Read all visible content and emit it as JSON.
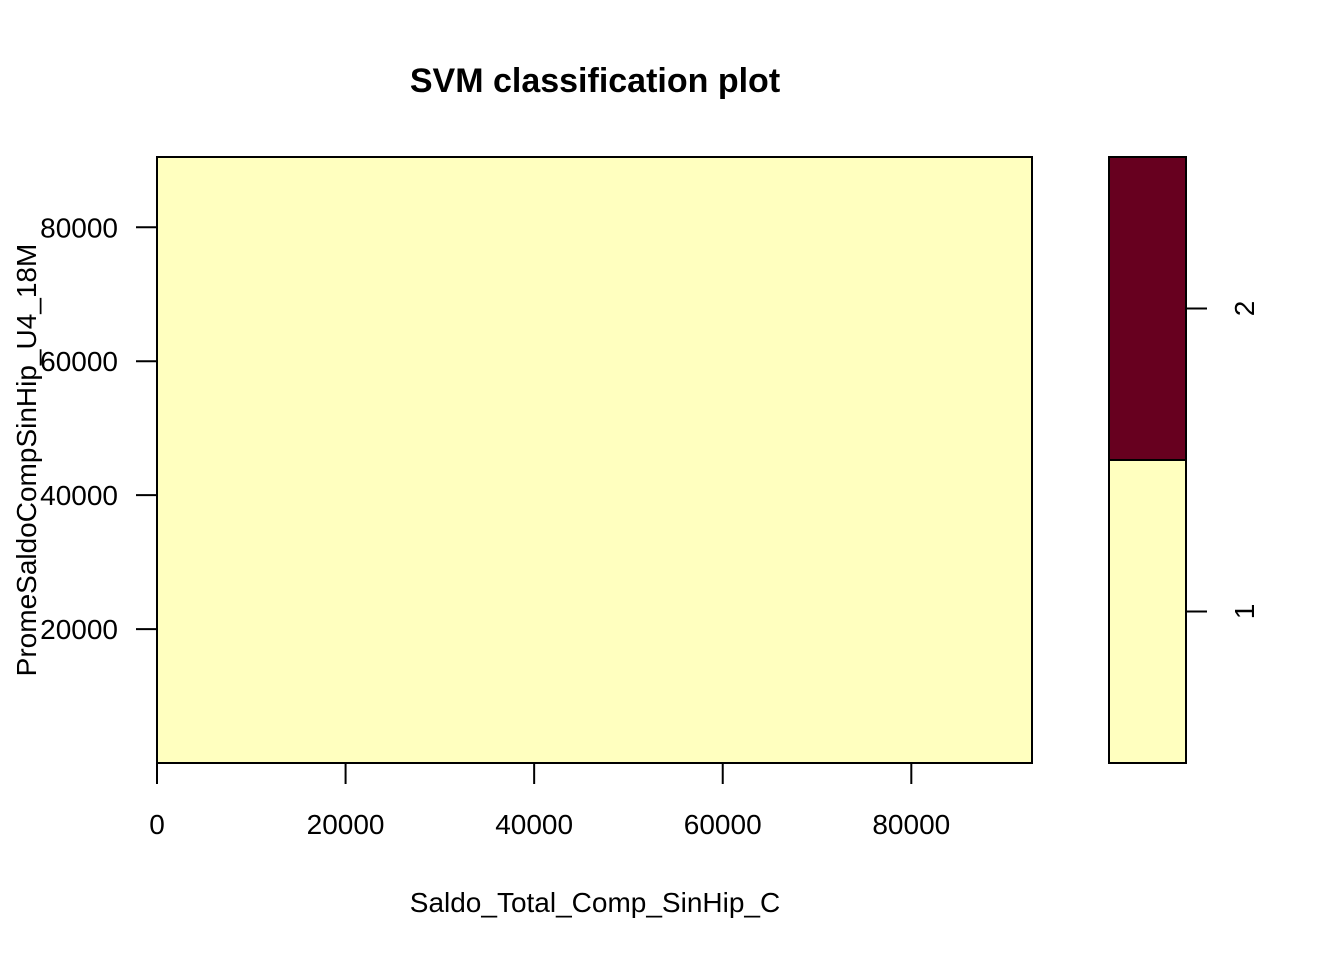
{
  "chart_data": {
    "type": "heatmap",
    "title": "SVM classification plot",
    "xlabel": "Saldo_Total_Comp_SinHip_C",
    "ylabel": "PromeSaldoCompSinHip_U4_18M",
    "xlim": [
      0,
      92800
    ],
    "ylim": [
      0,
      90500
    ],
    "x_ticks": [
      0,
      20000,
      40000,
      60000,
      80000
    ],
    "x_tick_labels": [
      "0",
      "20000",
      "40000",
      "60000",
      "80000"
    ],
    "y_ticks": [
      20000,
      40000,
      60000,
      80000
    ],
    "y_tick_labels": [
      "20000",
      "40000",
      "60000",
      "80000"
    ],
    "regions": [
      {
        "class": "1",
        "x": [
          0,
          92800
        ],
        "y": [
          0,
          90500
        ],
        "color": "#FFFFBF"
      }
    ],
    "legend": {
      "placement": "right",
      "classes": [
        {
          "label": "1",
          "color": "#FFFFBF"
        },
        {
          "label": "2",
          "color": "#67001F"
        }
      ]
    },
    "grid": false
  }
}
